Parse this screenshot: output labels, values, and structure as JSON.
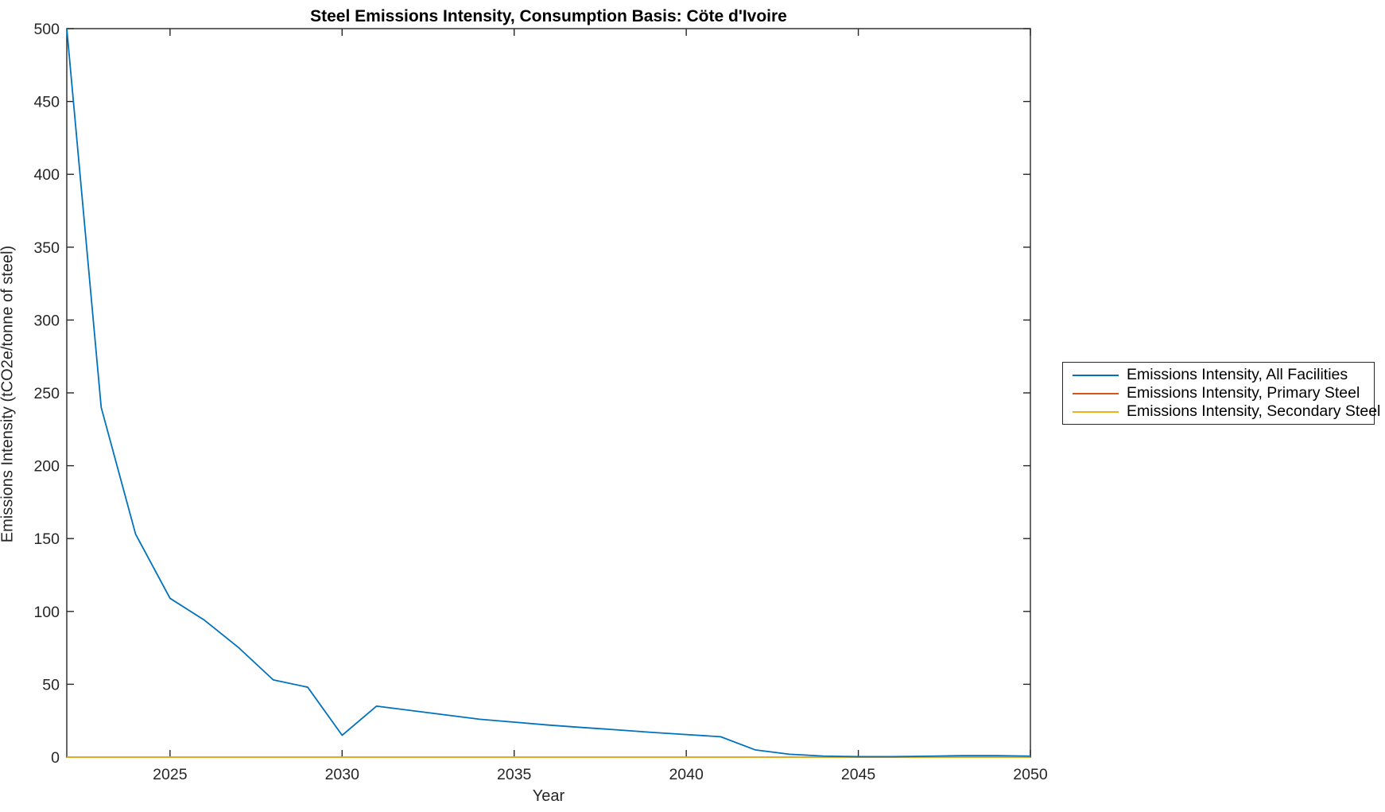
{
  "title": "Steel Emissions Intensity, Consumption Basis: Cöte d'Ivoire",
  "chart_data": {
    "type": "line",
    "title": "Steel Emissions Intensity, Consumption Basis: Cöte d'Ivoire",
    "xlabel": "Year",
    "ylabel": "Emissions Intensity (tCO2e/tonne of steel)",
    "xlim": [
      2022,
      2050
    ],
    "ylim": [
      0,
      500
    ],
    "x_ticks": [
      2025,
      2030,
      2035,
      2040,
      2045,
      2050
    ],
    "y_ticks": [
      0,
      50,
      100,
      150,
      200,
      250,
      300,
      350,
      400,
      450,
      500
    ],
    "grid": false,
    "legend_position": "outside-right",
    "axis_color": "#262626",
    "background": "#ffffff",
    "x": [
      2022,
      2023,
      2024,
      2025,
      2026,
      2027,
      2028,
      2029,
      2030,
      2031,
      2032,
      2033,
      2034,
      2035,
      2036,
      2037,
      2038,
      2039,
      2040,
      2041,
      2042,
      2043,
      2044,
      2045,
      2046,
      2047,
      2048,
      2049,
      2050
    ],
    "series": [
      {
        "name": "Emissions Intensity, All Facilities",
        "color": "#0072BD",
        "values": [
          500,
          240,
          153,
          109,
          94,
          75,
          53,
          48,
          15,
          35,
          32,
          29,
          26,
          24,
          22,
          20.3,
          18.7,
          17,
          15.5,
          14,
          5,
          2,
          0.7,
          0.3,
          0.3,
          0.6,
          1,
          1,
          0.7
        ]
      },
      {
        "name": "Emissions Intensity, Primary Steel",
        "color": "#D95319",
        "values": [
          0,
          0,
          0,
          0,
          0,
          0,
          0,
          0,
          0,
          0,
          0,
          0,
          0,
          0,
          0,
          0,
          0,
          0,
          0,
          0,
          0,
          0,
          0,
          0,
          0,
          0,
          0,
          0,
          0
        ]
      },
      {
        "name": "Emissions Intensity, Secondary Steel",
        "color": "#EDB120",
        "values": [
          0,
          0,
          0,
          0,
          0,
          0,
          0,
          0,
          0,
          0,
          0,
          0,
          0,
          0,
          0,
          0,
          0,
          0,
          0,
          0,
          0,
          0,
          0,
          0,
          0,
          0,
          0,
          0,
          0
        ]
      }
    ]
  }
}
